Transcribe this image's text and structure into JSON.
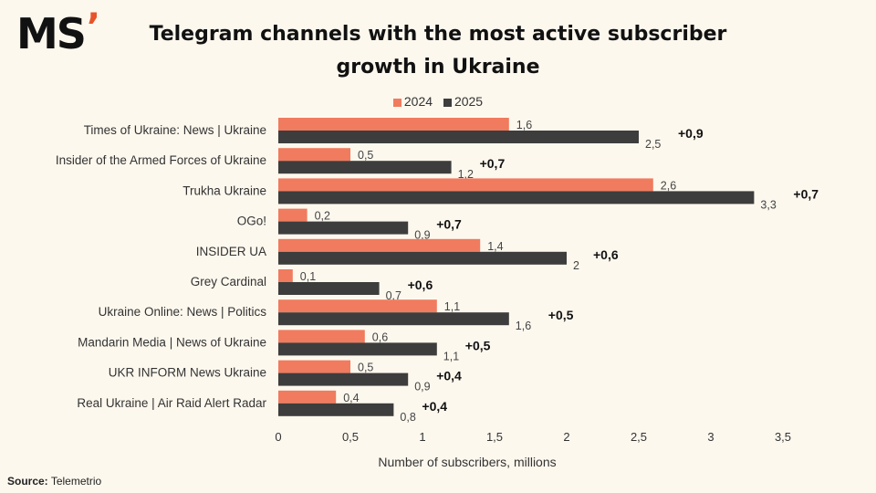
{
  "logo": {
    "text": "MS",
    "accent": "’"
  },
  "source": {
    "label": "Source:",
    "value": "Telemetrio"
  },
  "chart_data": {
    "type": "bar",
    "orientation": "horizontal",
    "title": "Telegram channels with the most active subscriber growth in Ukraine",
    "xlabel": "Number of subscribers, millions",
    "ylabel": "",
    "xlim": [
      0,
      3.5
    ],
    "xticks": [
      "0",
      "0,5",
      "1",
      "1,5",
      "2",
      "2,5",
      "3",
      "3,5"
    ],
    "xtick_values": [
      0,
      0.5,
      1,
      1.5,
      2,
      2.5,
      3,
      3.5
    ],
    "grid": false,
    "legend_position": "top-center",
    "categories": [
      "Times of Ukraine: News | Ukraine",
      "Insider of the Armed Forces of Ukraine",
      "Trukha Ukraine",
      "OGo!",
      "INSIDER UA",
      "Grey Cardinal",
      "Ukraine Online: News | Politics",
      "Mandarin Media | News of Ukraine",
      "UKR INFORM News Ukraine",
      "Real Ukraine | Air Raid Alert Radar"
    ],
    "series": [
      {
        "name": "2024",
        "color": "#f07b5e",
        "values": [
          1.6,
          0.5,
          2.6,
          0.2,
          1.4,
          0.1,
          1.1,
          0.6,
          0.5,
          0.4
        ],
        "labels": [
          "1,6",
          "0,5",
          "2,6",
          "0,2",
          "1,4",
          "0,1",
          "1,1",
          "0,6",
          "0,5",
          "0,4"
        ]
      },
      {
        "name": "2025",
        "color": "#3d3d3d",
        "values": [
          2.5,
          1.2,
          3.3,
          0.9,
          2.0,
          0.7,
          1.6,
          1.1,
          0.9,
          0.8
        ],
        "labels": [
          "2,5",
          "1,2",
          "3,3",
          "0,9",
          "2",
          "0,7",
          "1,6",
          "1,1",
          "0,9",
          "0,8"
        ]
      }
    ],
    "annotations": [
      "+0,9",
      "+0,7",
      "+0,7",
      "+0,7",
      "+0,6",
      "+0,6",
      "+0,5",
      "+0,5",
      "+0,4",
      "+0,4"
    ]
  }
}
